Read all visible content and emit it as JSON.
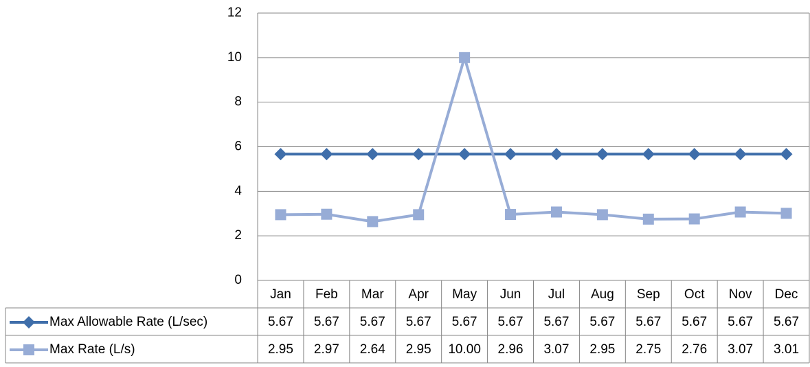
{
  "chart_data": {
    "type": "line",
    "categories": [
      "Jan",
      "Feb",
      "Mar",
      "Apr",
      "May",
      "Jun",
      "Jul",
      "Aug",
      "Sep",
      "Oct",
      "Nov",
      "Dec"
    ],
    "series": [
      {
        "name": "Max Allowable Rate (L/sec)",
        "color": "#3f6eaa",
        "marker": "diamond",
        "values": [
          5.67,
          5.67,
          5.67,
          5.67,
          5.67,
          5.67,
          5.67,
          5.67,
          5.67,
          5.67,
          5.67,
          5.67
        ],
        "value_labels": [
          "5.67",
          "5.67",
          "5.67",
          "5.67",
          "5.67",
          "5.67",
          "5.67",
          "5.67",
          "5.67",
          "5.67",
          "5.67",
          "5.67"
        ]
      },
      {
        "name": "Max Rate (L/s)",
        "color": "#97acd6",
        "marker": "square",
        "values": [
          2.95,
          2.97,
          2.64,
          2.95,
          10,
          2.96,
          3.07,
          2.95,
          2.75,
          2.76,
          3.07,
          3.01
        ],
        "value_labels": [
          "2.95",
          "2.97",
          "2.64",
          "2.95",
          "10.00",
          "2.96",
          "3.07",
          "2.95",
          "2.75",
          "2.76",
          "3.07",
          "3.01"
        ]
      }
    ],
    "ylim": [
      0,
      12
    ],
    "yticks": [
      0,
      2,
      4,
      6,
      8,
      10,
      12
    ],
    "grid": true,
    "data_table": true
  }
}
